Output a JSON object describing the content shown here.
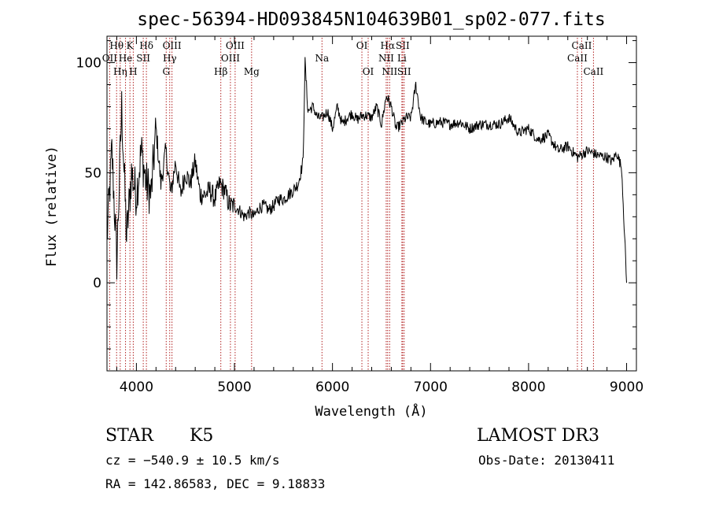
{
  "chart_data": {
    "type": "line",
    "title": "spec-56394-HD093845N104639B01_sp02-077.fits",
    "xlabel": "Wavelength (Å)",
    "ylabel": "Flux (relative)",
    "xlim": [
      3700,
      9100
    ],
    "ylim": [
      -40,
      112
    ],
    "xticks": [
      4000,
      5000,
      6000,
      7000,
      8000,
      9000
    ],
    "yticks": [
      0,
      50,
      100
    ],
    "xtick_labels": [
      "4000",
      "5000",
      "6000",
      "7000",
      "8000",
      "9000"
    ],
    "ytick_labels": [
      "0",
      "50",
      "100"
    ],
    "grid": false,
    "series": [
      {
        "color": "#000000",
        "x": [
          3700,
          3750,
          3800,
          3850,
          3900,
          3950,
          4000,
          4050,
          4100,
          4150,
          4200,
          4250,
          4300,
          4350,
          4400,
          4450,
          4500,
          4550,
          4600,
          4650,
          4700,
          4750,
          4800,
          4850,
          4900,
          4950,
          5000,
          5050,
          5100,
          5150,
          5200,
          5250,
          5300,
          5350,
          5400,
          5450,
          5500,
          5550,
          5600,
          5650,
          5700,
          5720,
          5750,
          5800,
          5850,
          5900,
          5950,
          6000,
          6050,
          6100,
          6150,
          6200,
          6250,
          6300,
          6350,
          6400,
          6450,
          6500,
          6550,
          6600,
          6650,
          6700,
          6750,
          6800,
          6850,
          6900,
          6950,
          7000,
          7100,
          7200,
          7300,
          7400,
          7500,
          7600,
          7700,
          7800,
          7900,
          8000,
          8100,
          8200,
          8300,
          8400,
          8500,
          8600,
          8700,
          8800,
          8850,
          8900,
          8950,
          9000
        ],
        "y": [
          20,
          60,
          10,
          80,
          20,
          50,
          40,
          60,
          45,
          40,
          70,
          45,
          60,
          40,
          55,
          40,
          50,
          45,
          55,
          40,
          40,
          42,
          38,
          45,
          42,
          35,
          35,
          33,
          30,
          32,
          30,
          34,
          35,
          33,
          35,
          38,
          38,
          40,
          42,
          45,
          55,
          100,
          78,
          80,
          75,
          75,
          78,
          70,
          80,
          72,
          75,
          77,
          74,
          76,
          76,
          75,
          80,
          72,
          85,
          80,
          70,
          72,
          75,
          75,
          90,
          75,
          73,
          72,
          73,
          72,
          73,
          70,
          72,
          72,
          72,
          75,
          68,
          70,
          65,
          67,
          60,
          62,
          57,
          60,
          58,
          57,
          55,
          59,
          52,
          0
        ]
      }
    ],
    "lines": [
      {
        "label": "Hθ",
        "x": 3798,
        "row": 1,
        "offset": 0
      },
      {
        "label": "OII",
        "x": 3727,
        "row": 2,
        "offset": 0
      },
      {
        "label": "Hη",
        "x": 3835,
        "row": 3,
        "offset": 0
      },
      {
        "label": "K",
        "x": 3934,
        "row": 1,
        "offset": 0
      },
      {
        "label": "He",
        "x": 3889,
        "row": 2,
        "offset": 0
      },
      {
        "label": "SII",
        "x": 4070,
        "row": 2,
        "offset": 0
      },
      {
        "label": "H",
        "x": 3968,
        "row": 3,
        "offset": 0
      },
      {
        "label": "Hδ",
        "x": 4102,
        "row": 1,
        "offset": 0
      },
      {
        "label": "OIII",
        "x": 4363,
        "row": 1,
        "offset": 0
      },
      {
        "label": "Hγ",
        "x": 4340,
        "row": 2,
        "offset": 0
      },
      {
        "label": "G",
        "x": 4304,
        "row": 3,
        "offset": 0
      },
      {
        "label": "Hβ",
        "x": 4861,
        "row": 3,
        "offset": 0
      },
      {
        "label": "OIII",
        "x": 5007,
        "row": 1,
        "offset": 0
      },
      {
        "label": "OIII",
        "x": 4959,
        "row": 2,
        "offset": 0
      },
      {
        "label": "Mg",
        "x": 5175,
        "row": 3,
        "offset": 0
      },
      {
        "label": "Na",
        "x": 5893,
        "row": 2,
        "offset": 0
      },
      {
        "label": "OI",
        "x": 6300,
        "row": 1,
        "offset": 0
      },
      {
        "label": "OI",
        "x": 6364,
        "row": 3,
        "offset": 0
      },
      {
        "label": "Hα",
        "x": 6563,
        "row": 1,
        "offset": 0
      },
      {
        "label": "NII",
        "x": 6548,
        "row": 2,
        "offset": 0
      },
      {
        "label": "NII",
        "x": 6583,
        "row": 3,
        "offset": 0
      },
      {
        "label": "SII",
        "x": 6716,
        "row": 1,
        "offset": 0
      },
      {
        "label": "Li",
        "x": 6708,
        "row": 2,
        "offset": 0
      },
      {
        "label": "SII",
        "x": 6731,
        "row": 3,
        "offset": 0
      },
      {
        "label": "CaII",
        "x": 8542,
        "row": 1,
        "offset": 0
      },
      {
        "label": "CaII",
        "x": 8498,
        "row": 2,
        "offset": 0
      },
      {
        "label": "CaII",
        "x": 8662,
        "row": 3,
        "offset": 0
      }
    ]
  },
  "info": {
    "class_label": "STAR",
    "subclass": "K5",
    "survey": "LAMOST DR3",
    "cz": "cz = −540.9 ± 10.5 km/s",
    "obs_date": "Obs-Date: 20130411",
    "radec": "RA = 142.86583, DEC =   9.18833"
  }
}
